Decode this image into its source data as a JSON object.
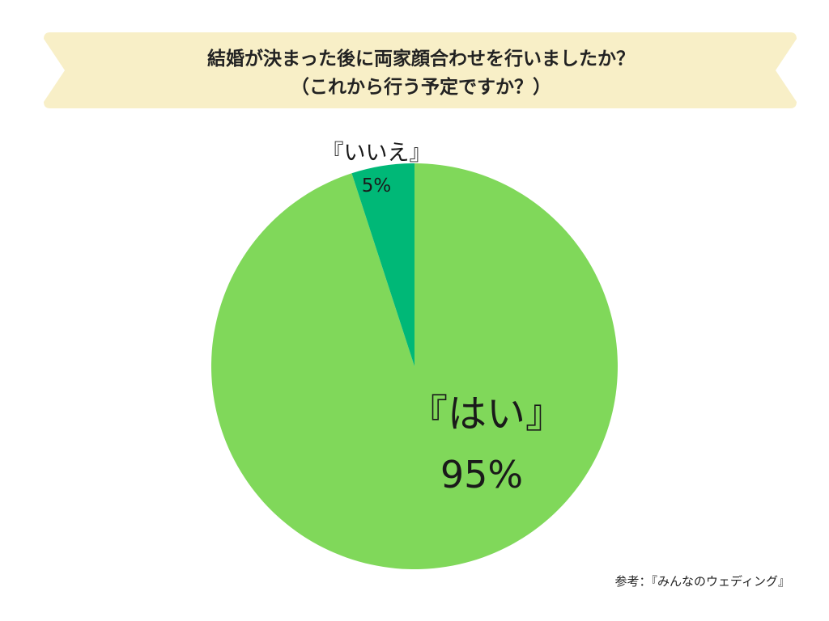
{
  "header": {
    "title_line1": "結婚が決まった後に両家顔合わせを行いましたか？",
    "title_line2": "（これから行う予定ですか？）",
    "banner_color": "#f8efc7"
  },
  "chart_data": {
    "type": "pie",
    "title": "結婚が決まった後に両家顔合わせを行いましたか？（これから行う予定ですか？）",
    "slices": [
      {
        "label": "『はい』",
        "value": 95,
        "value_label": "95%",
        "color": "#80d85a"
      },
      {
        "label": "『いいえ』",
        "value": 5,
        "value_label": "5%",
        "color": "#00b877"
      }
    ],
    "start_angle": "12 o'clock",
    "direction": "clockwise"
  },
  "source": {
    "text": "参考：『みんなのウェディング』"
  }
}
